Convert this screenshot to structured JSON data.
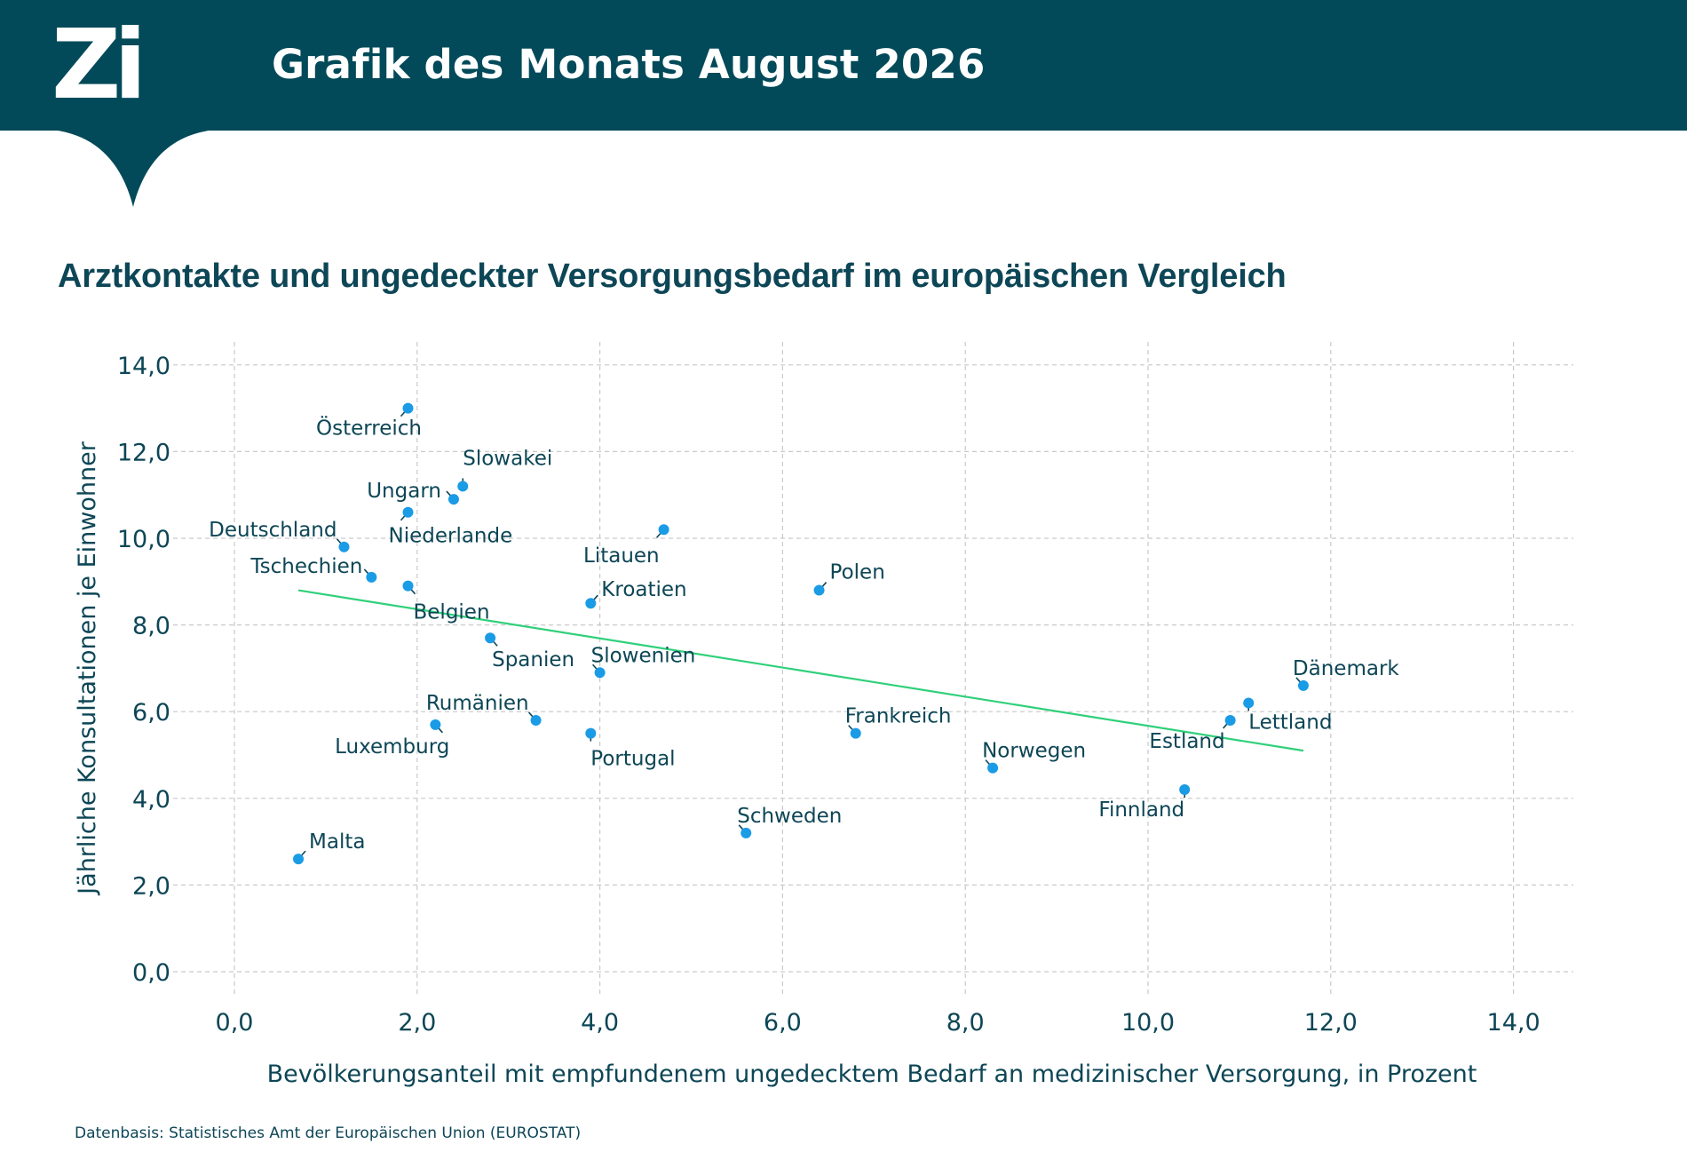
{
  "header": {
    "logo": "Zi",
    "title": "Grafik des Monats August 2026"
  },
  "colors": {
    "header_bg": "#024a59",
    "text": "#0d4656",
    "point": "#1a9be6",
    "trend": "#2fd07a",
    "grid": "#c9c9c9"
  },
  "chart_data": {
    "type": "scatter",
    "title": "Arztkontakte und ungedeckter Versorgungsbedarf im europäischen Vergleich",
    "xlabel": "Bevölkerungsanteil mit empfundenem ungedecktem Bedarf an medizinischer Versorgung, in Prozent",
    "ylabel": "Jährliche Konsultationen je Einwohner",
    "xlim": [
      0,
      14
    ],
    "ylim": [
      0,
      14
    ],
    "x_ticks": [
      "0,0",
      "2,0",
      "4,0",
      "6,0",
      "8,0",
      "10,0",
      "12,0",
      "14,0"
    ],
    "y_ticks": [
      "0,0",
      "2,0",
      "4,0",
      "6,0",
      "8,0",
      "10,0",
      "12,0",
      "14,0"
    ],
    "grid": true,
    "grid_style": "dashed",
    "trendline": {
      "x": [
        0.7,
        11.7
      ],
      "y": [
        8.8,
        5.1
      ]
    },
    "points": [
      {
        "label": "Österreich",
        "x": 1.9,
        "y": 13.0
      },
      {
        "label": "Slowakei",
        "x": 2.5,
        "y": 11.2
      },
      {
        "label": "Ungarn",
        "x": 2.4,
        "y": 10.9
      },
      {
        "label": "Niederlande",
        "x": 1.9,
        "y": 10.6
      },
      {
        "label": "Deutschland",
        "x": 1.2,
        "y": 9.8
      },
      {
        "label": "Tschechien",
        "x": 1.5,
        "y": 9.1
      },
      {
        "label": "Belgien",
        "x": 1.9,
        "y": 8.9
      },
      {
        "label": "Litauen",
        "x": 4.7,
        "y": 10.2
      },
      {
        "label": "Kroatien",
        "x": 3.9,
        "y": 8.5
      },
      {
        "label": "Polen",
        "x": 6.4,
        "y": 8.8
      },
      {
        "label": "Spanien",
        "x": 2.8,
        "y": 7.7
      },
      {
        "label": "Slowenien",
        "x": 4.0,
        "y": 6.9
      },
      {
        "label": "Rumänien",
        "x": 3.3,
        "y": 5.8
      },
      {
        "label": "Luxemburg",
        "x": 2.2,
        "y": 5.7
      },
      {
        "label": "Portugal",
        "x": 3.9,
        "y": 5.5
      },
      {
        "label": "Frankreich",
        "x": 6.8,
        "y": 5.5
      },
      {
        "label": "Norwegen",
        "x": 8.3,
        "y": 4.7
      },
      {
        "label": "Schweden",
        "x": 5.6,
        "y": 3.2
      },
      {
        "label": "Malta",
        "x": 0.7,
        "y": 2.6
      },
      {
        "label": "Dänemark",
        "x": 11.7,
        "y": 6.6
      },
      {
        "label": "Lettland",
        "x": 11.1,
        "y": 6.2
      },
      {
        "label": "Estland",
        "x": 10.9,
        "y": 5.8
      },
      {
        "label": "Finnland",
        "x": 10.4,
        "y": 4.2
      }
    ]
  },
  "source": "Datenbasis: Statistisches Amt der Europäischen Union (EUROSTAT)"
}
